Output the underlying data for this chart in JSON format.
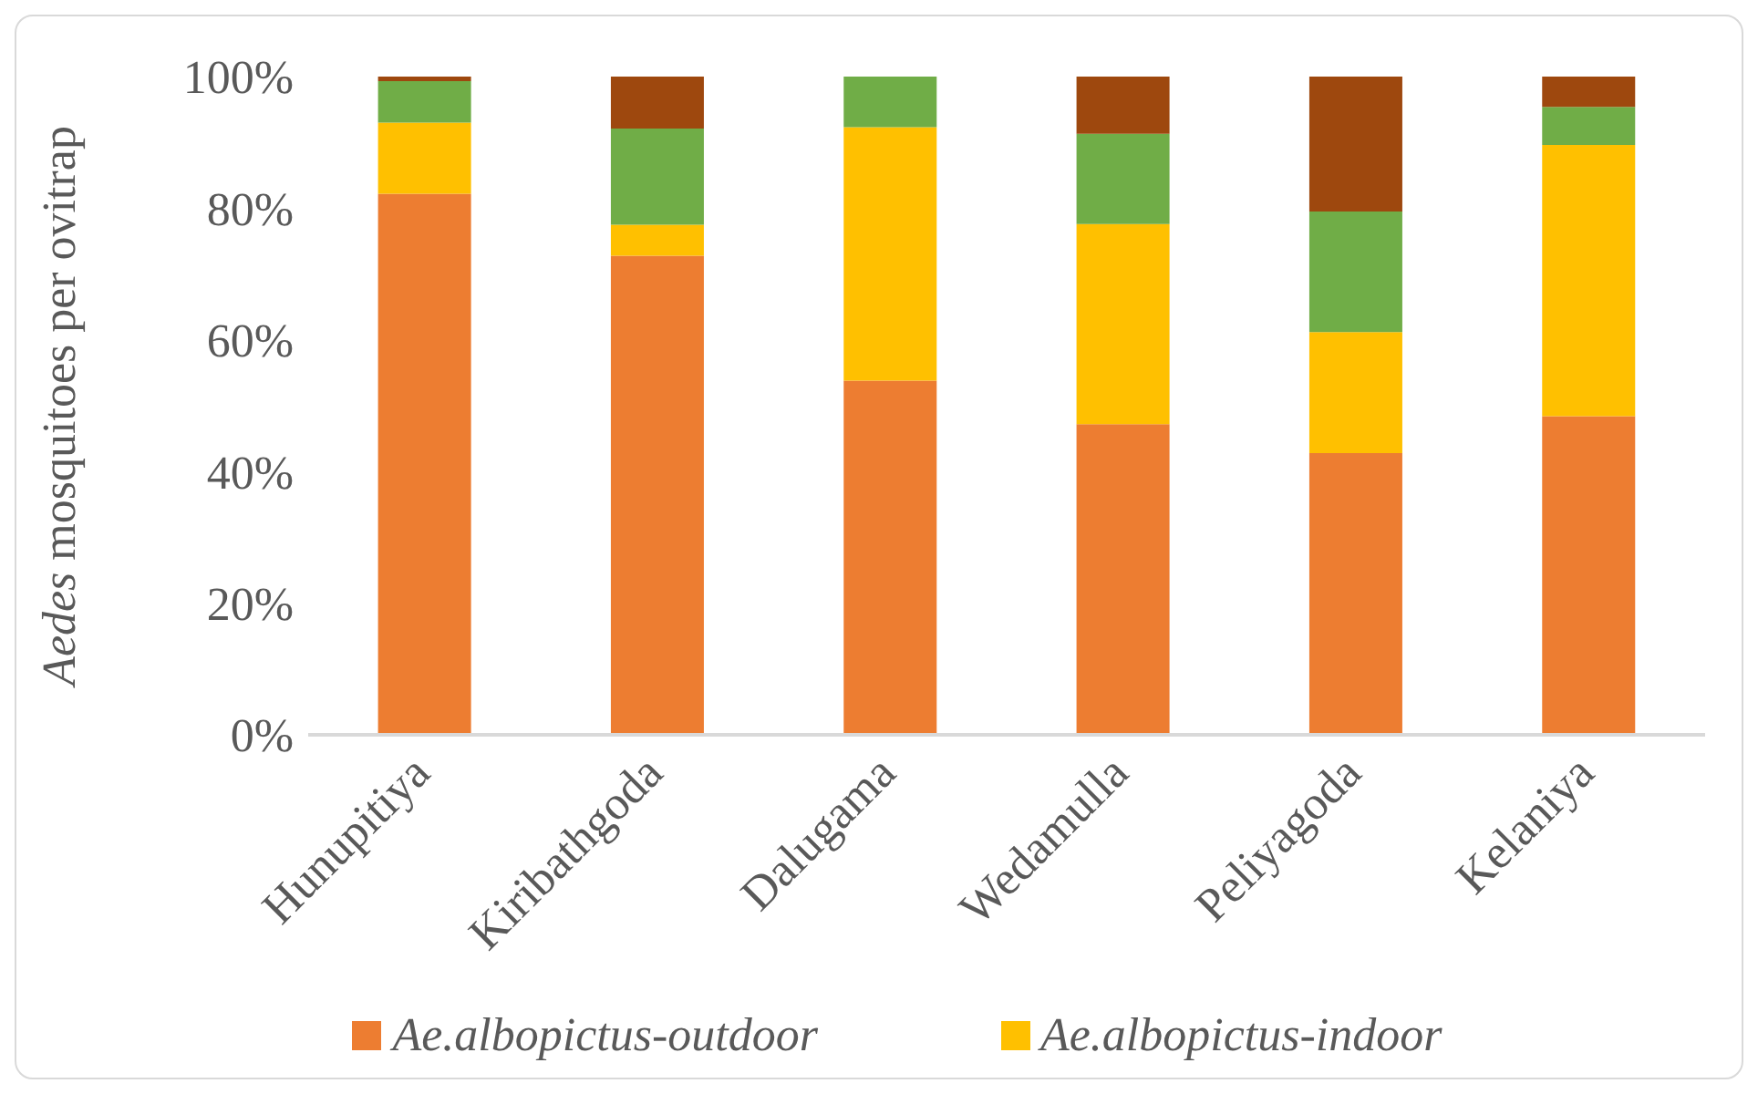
{
  "chart_data": {
    "type": "bar",
    "stacked": true,
    "ylabel": "Aedes mosquitoes per ovitrap",
    "categories": [
      "Hunupitiya",
      "Kiribathgoda",
      "Dalugama",
      "Wedamulla",
      "Peliyagoda",
      "Kelaniya"
    ],
    "series": [
      {
        "name": "Ae.albopictus-outdoor",
        "color": "#ed7d31",
        "values": [
          82.2,
          72.8,
          53.8,
          47.2,
          42.8,
          48.4
        ]
      },
      {
        "name": "Ae.albopictus-indoor",
        "color": "#ffc000",
        "values": [
          10.8,
          4.7,
          38.5,
          30.4,
          18.4,
          41.2
        ]
      },
      {
        "color": "#70ad47",
        "values": [
          6.3,
          14.6,
          7.7,
          13.7,
          18.3,
          5.8
        ]
      },
      {
        "color": "#9e480e",
        "values": [
          0.7,
          7.9,
          0,
          8.7,
          20.5,
          4.6
        ]
      }
    ],
    "ylim": [
      0,
      100
    ],
    "yticks": [
      {
        "value": 0,
        "label": "0%"
      },
      {
        "value": 20,
        "label": "20%"
      },
      {
        "value": 40,
        "label": "40%"
      },
      {
        "value": 60,
        "label": "60%"
      },
      {
        "value": 80,
        "label": "80%"
      },
      {
        "value": 100,
        "label": "100%"
      }
    ],
    "grid": false,
    "legend": "bottom"
  }
}
